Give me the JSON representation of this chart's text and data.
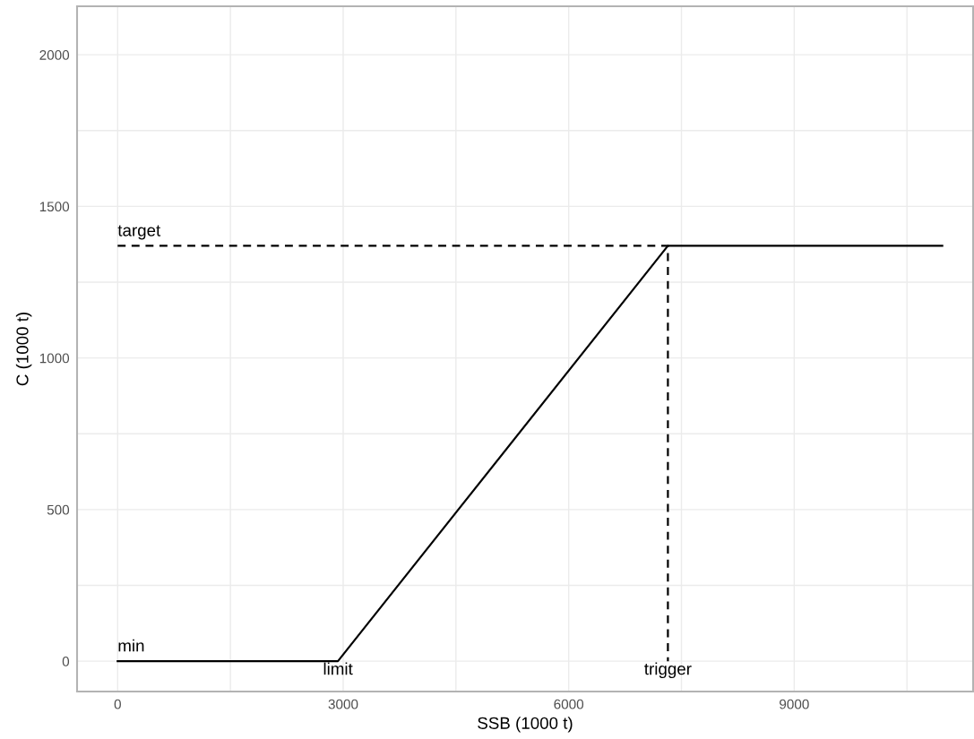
{
  "chart_data": {
    "type": "line",
    "xlabel": "SSB (1000 t)",
    "ylabel": "C (1000 t)",
    "series": [
      {
        "x": [
          0,
          2930,
          7320,
          10970
        ],
        "values": [
          0,
          0,
          1370,
          1370
        ],
        "color": "#000000",
        "line_style": "solid"
      },
      {
        "x": [
          0,
          7320,
          7320
        ],
        "values": [
          1370,
          1370,
          0
        ],
        "color": "#000000",
        "line_style": "dashed"
      }
    ],
    "annotations": [
      {
        "text": "target",
        "x": 0,
        "y": 1370
      },
      {
        "text": "min",
        "x": 0,
        "y": 0
      },
      {
        "text": "limit",
        "x": 2930,
        "y": 0
      },
      {
        "text": "trigger",
        "x": 7320,
        "y": 0
      }
    ],
    "xlim": [
      -540,
      11380
    ],
    "ylim": [
      -100,
      2160
    ],
    "xticks": [
      0,
      {
        "value": 1500,
        "label": null
      },
      3000,
      {
        "value": 4500,
        "label": null
      },
      6000,
      {
        "value": 7500,
        "label": null
      },
      9000,
      {
        "value": 10500,
        "label": null
      }
    ],
    "yticks": [
      0,
      {
        "value": 250,
        "label": null
      },
      500,
      {
        "value": 750,
        "label": null
      },
      1000,
      {
        "value": 1250,
        "label": null
      },
      1500,
      {
        "value": 1750,
        "label": null
      },
      2000
    ],
    "grid": true,
    "marker": "none"
  }
}
